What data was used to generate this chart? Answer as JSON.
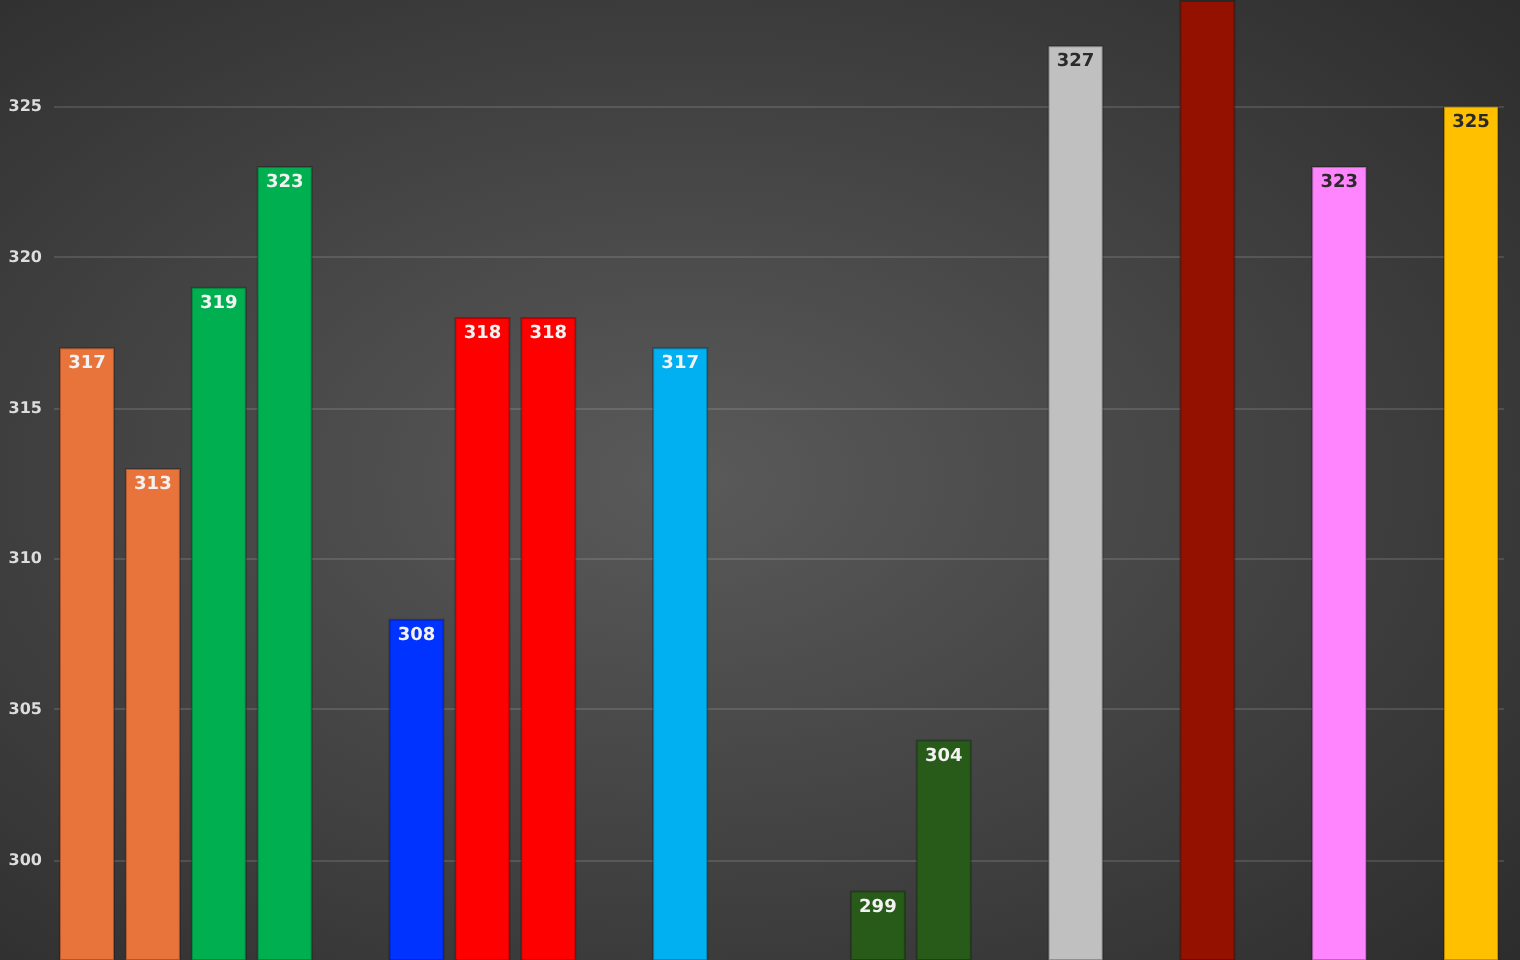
{
  "chart_data": {
    "type": "bar",
    "categories": [
      null,
      null,
      null,
      null,
      null,
      null,
      null,
      null,
      null,
      null,
      null,
      null,
      null,
      null,
      null,
      null,
      null,
      null,
      null,
      null,
      null,
      null
    ],
    "values": [
      317,
      313,
      319,
      323,
      null,
      308,
      318,
      318,
      null,
      317,
      null,
      null,
      299,
      304,
      null,
      327,
      null,
      328.5,
      null,
      323,
      null,
      325
    ],
    "colors": [
      "#e8743b",
      "#e8743b",
      "#00b050",
      "#00b050",
      null,
      "#0033ff",
      "#ff0000",
      "#ff0000",
      null,
      "#00b0f0",
      null,
      null,
      "#285a1a",
      "#285a1a",
      null,
      "#c0c0c0",
      null,
      "#941100",
      null,
      "#ff85ff",
      null,
      "#ffc000"
    ],
    "value_labels": [
      "317",
      "313",
      "319",
      "323",
      null,
      "308",
      "318",
      "318",
      null,
      "317",
      null,
      null,
      "299",
      "304",
      null,
      "327",
      null,
      null,
      null,
      "323",
      null,
      "325"
    ],
    "ylim": [
      296.7,
      328.5
    ],
    "yticks": [
      300,
      305,
      310,
      315,
      320,
      325
    ],
    "grid": "y",
    "tick_labels": "y"
  }
}
